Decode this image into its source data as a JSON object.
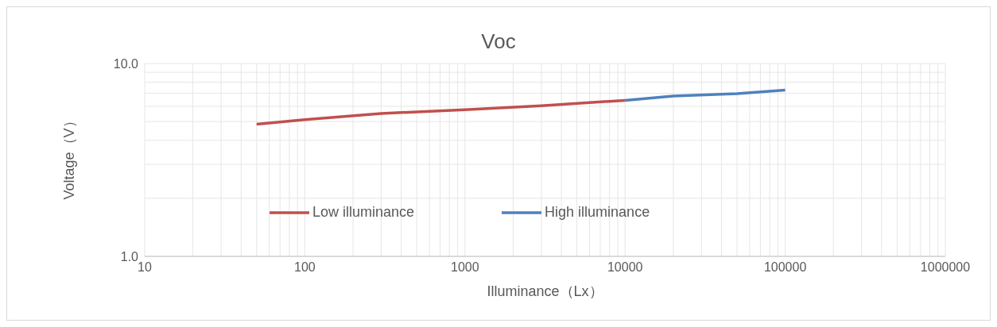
{
  "chart_data": {
    "type": "line",
    "title": "Voc",
    "xlabel": "Illuminance（Lx）",
    "ylabel": "Voltage（V）",
    "log": "xy",
    "grid": true,
    "legend": "bottom",
    "line_style": "solid",
    "marker": "none",
    "xlim": [
      10,
      1000000
    ],
    "xticks": [
      10,
      {
        "value": 20,
        "label": null
      },
      {
        "value": 30,
        "label": null
      },
      {
        "value": 40,
        "label": null
      },
      {
        "value": 50,
        "label": null
      },
      {
        "value": 60,
        "label": null
      },
      {
        "value": 70,
        "label": null
      },
      {
        "value": 80,
        "label": null
      },
      {
        "value": 90,
        "label": null
      },
      100,
      {
        "value": 200,
        "label": null
      },
      {
        "value": 300,
        "label": null
      },
      {
        "value": 400,
        "label": null
      },
      {
        "value": 500,
        "label": null
      },
      {
        "value": 600,
        "label": null
      },
      {
        "value": 700,
        "label": null
      },
      {
        "value": 800,
        "label": null
      },
      {
        "value": 900,
        "label": null
      },
      1000,
      {
        "value": 2000,
        "label": null
      },
      {
        "value": 3000,
        "label": null
      },
      {
        "value": 4000,
        "label": null
      },
      {
        "value": 5000,
        "label": null
      },
      {
        "value": 6000,
        "label": null
      },
      {
        "value": 7000,
        "label": null
      },
      {
        "value": 8000,
        "label": null
      },
      {
        "value": 9000,
        "label": null
      },
      10000,
      {
        "value": 20000,
        "label": null
      },
      {
        "value": 30000,
        "label": null
      },
      {
        "value": 40000,
        "label": null
      },
      {
        "value": 50000,
        "label": null
      },
      {
        "value": 60000,
        "label": null
      },
      {
        "value": 70000,
        "label": null
      },
      {
        "value": 80000,
        "label": null
      },
      {
        "value": 90000,
        "label": null
      },
      100000,
      {
        "value": 200000,
        "label": null
      },
      {
        "value": 300000,
        "label": null
      },
      {
        "value": 400000,
        "label": null
      },
      {
        "value": 500000,
        "label": null
      },
      {
        "value": 600000,
        "label": null
      },
      {
        "value": 700000,
        "label": null
      },
      {
        "value": 800000,
        "label": null
      },
      {
        "value": 900000,
        "label": null
      },
      1000000
    ],
    "ylim": [
      1,
      10
    ],
    "yticks": [
      {
        "value": 1,
        "label": "1.0"
      },
      {
        "value": 2,
        "label": null
      },
      {
        "value": 3,
        "label": null
      },
      {
        "value": 4,
        "label": null
      },
      {
        "value": 5,
        "label": null
      },
      {
        "value": 6,
        "label": null
      },
      {
        "value": 7,
        "label": null
      },
      {
        "value": 8,
        "label": null
      },
      {
        "value": 9,
        "label": null
      },
      {
        "value": 10,
        "label": "10.0"
      }
    ],
    "series": [
      {
        "name": "Low illuminance",
        "color": "#c0504d",
        "x": [
          50,
          100,
          300,
          1000,
          3000,
          10000
        ],
        "values": [
          4.84,
          5.12,
          5.51,
          5.76,
          6.04,
          6.44
        ]
      },
      {
        "name": "High illuminance",
        "color": "#4f81bd",
        "x": [
          10000,
          20000,
          50000,
          100000
        ],
        "values": [
          6.44,
          6.78,
          6.98,
          7.28
        ]
      }
    ]
  }
}
